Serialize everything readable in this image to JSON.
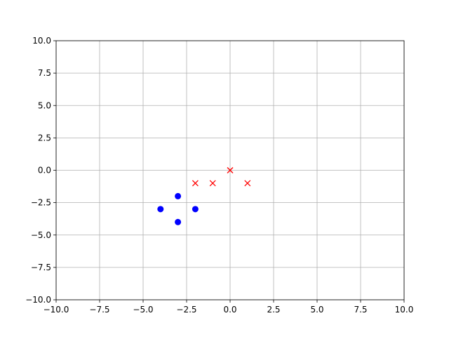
{
  "chart_data": {
    "type": "scatter",
    "title": "",
    "xlabel": "",
    "ylabel": "",
    "xlim": [
      -10,
      10
    ],
    "ylim": [
      -10,
      10
    ],
    "grid": true,
    "xticks": [
      -10,
      -7.5,
      -5,
      -2.5,
      0,
      2.5,
      5,
      7.5,
      10
    ],
    "yticks": [
      -10,
      -7.5,
      -5,
      -2.5,
      0,
      2.5,
      5,
      7.5,
      10
    ],
    "xtick_labels": [
      "−10.0",
      "−7.5",
      "−5.0",
      "−2.5",
      "0.0",
      "2.5",
      "5.0",
      "7.5",
      "10.0"
    ],
    "ytick_labels": [
      "−10.0",
      "−7.5",
      "−5.0",
      "−2.5",
      "0.0",
      "2.5",
      "5.0",
      "7.5",
      "10.0"
    ],
    "series": [
      {
        "marker": "circle",
        "color": "#0000ff",
        "points": [
          [
            -4,
            -3
          ],
          [
            -3,
            -2
          ],
          [
            -3,
            -4
          ],
          [
            -2,
            -3
          ]
        ]
      },
      {
        "marker": "x",
        "color": "#ff0000",
        "points": [
          [
            -2,
            -1
          ],
          [
            -1,
            -1
          ],
          [
            0,
            0
          ],
          [
            1,
            -1
          ]
        ]
      }
    ]
  }
}
